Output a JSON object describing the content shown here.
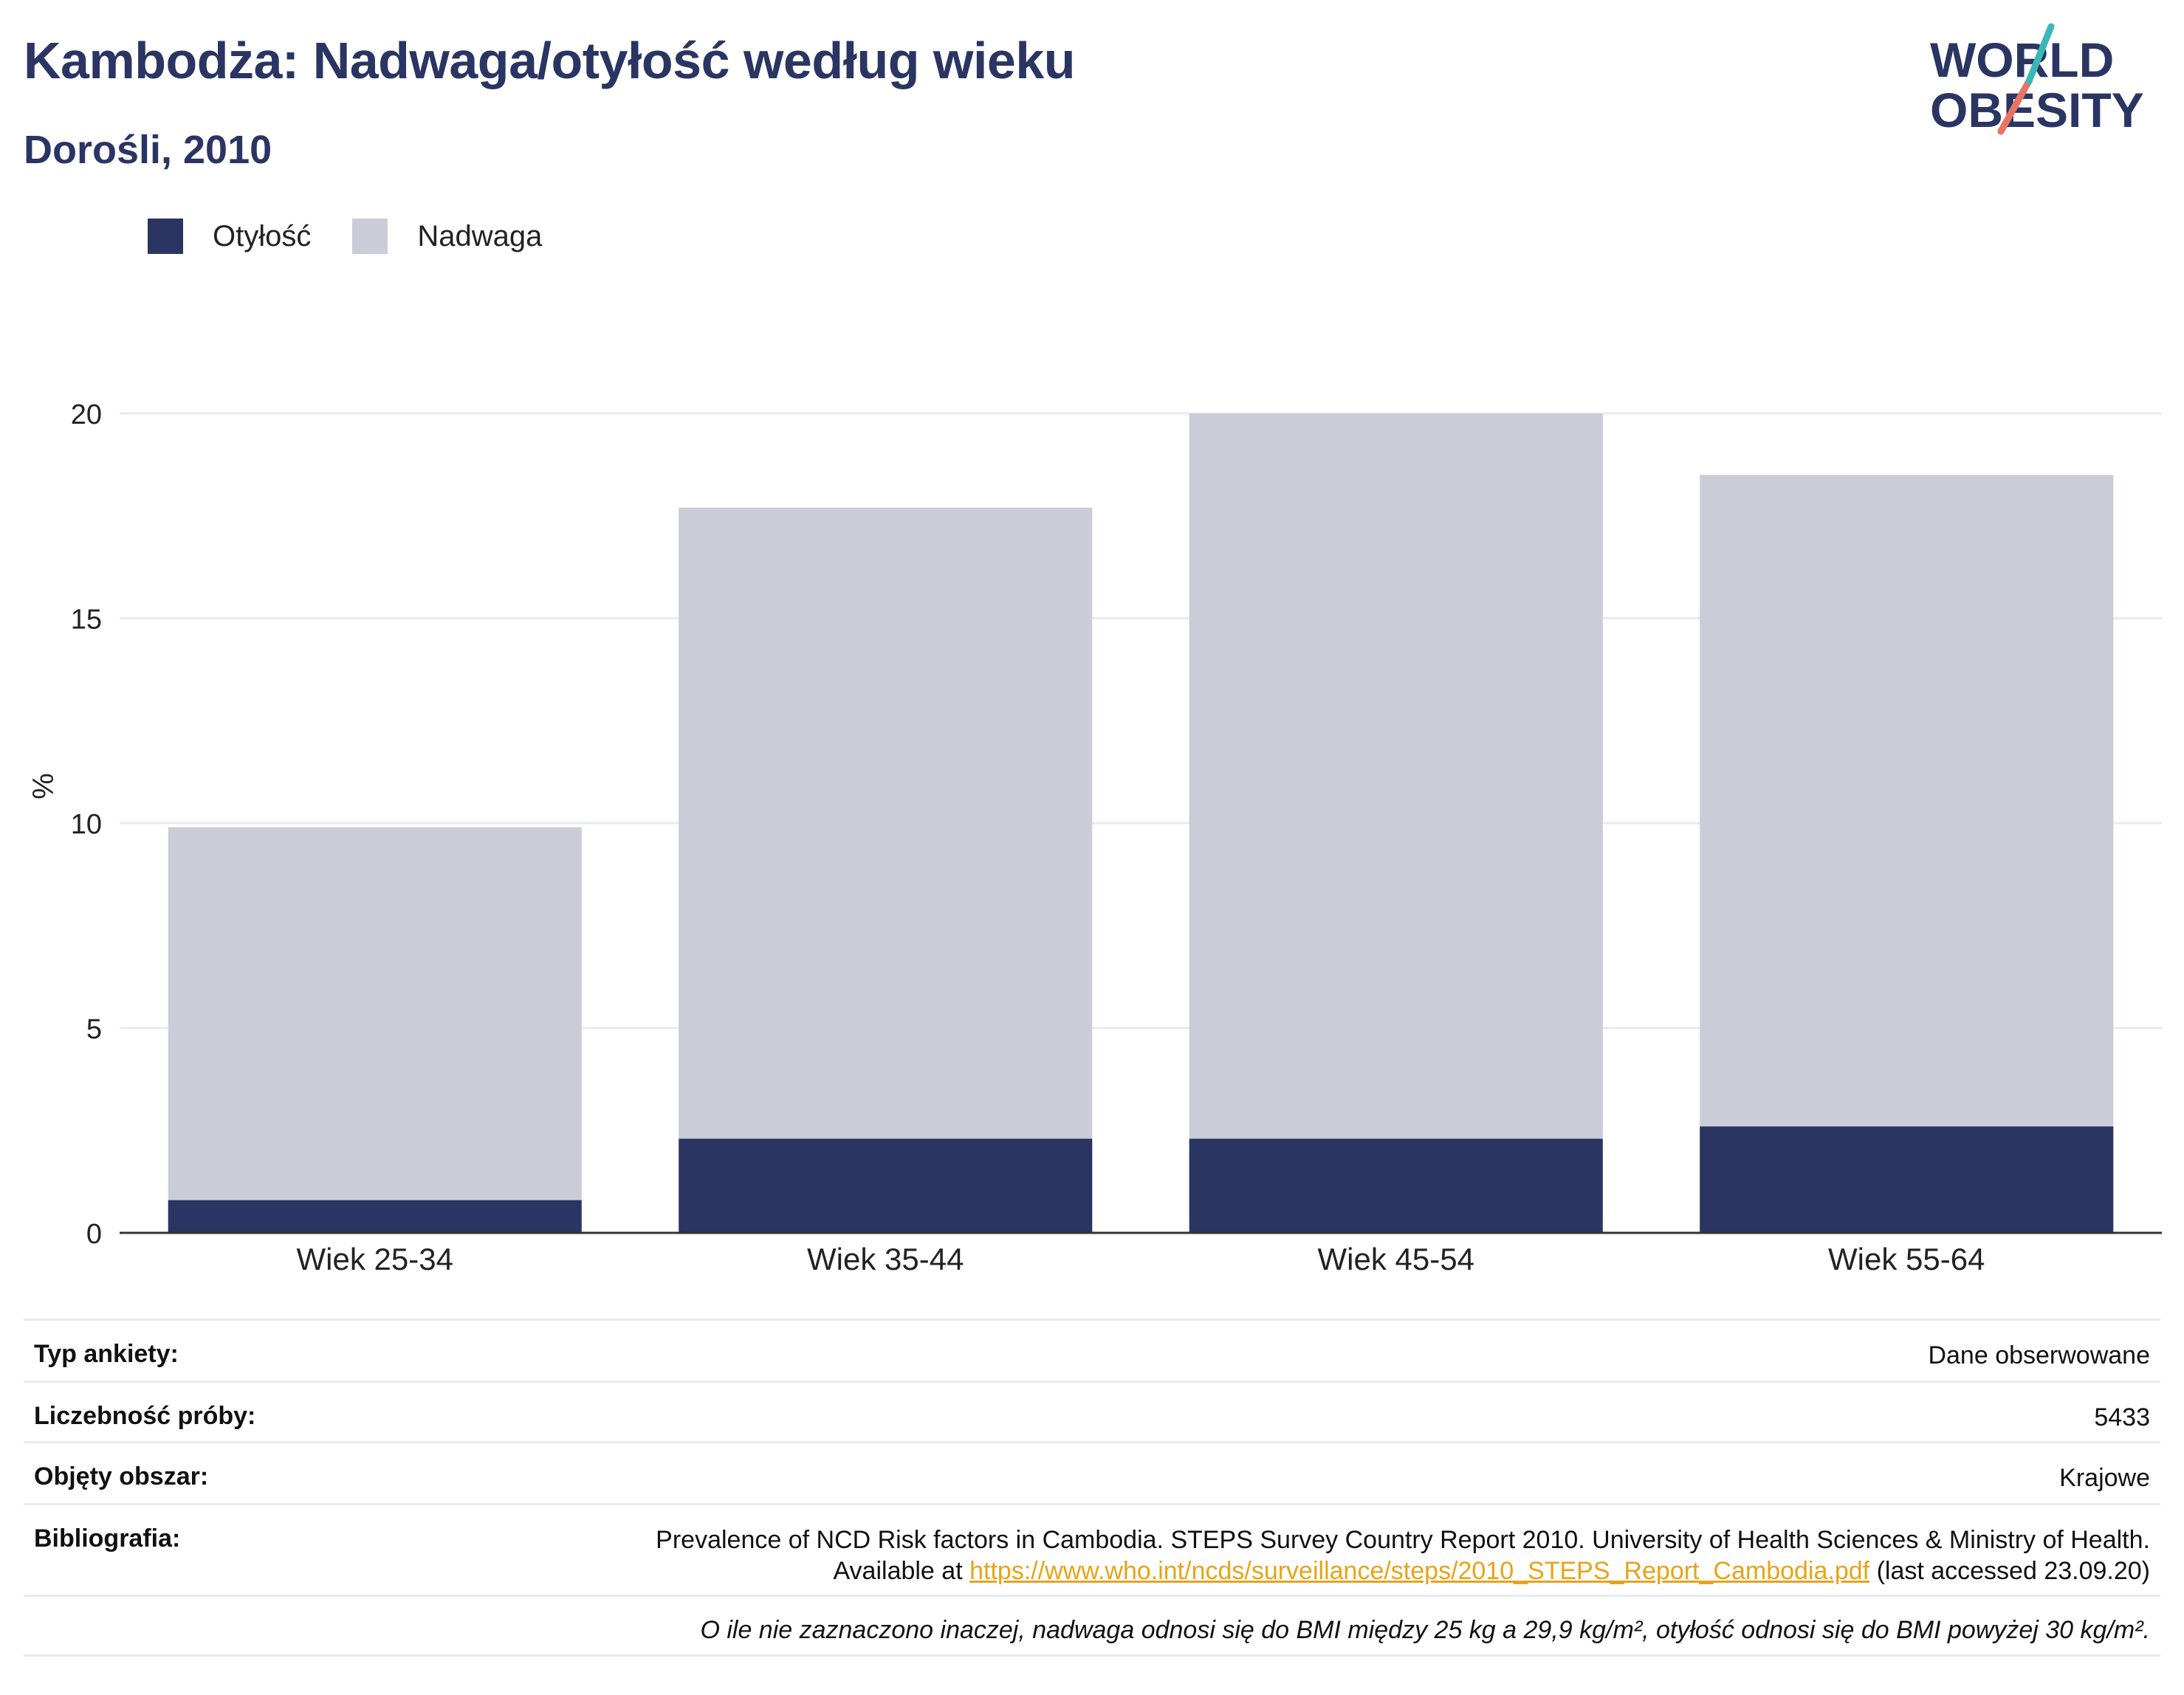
{
  "header": {
    "title": "Kambodża: Nadwaga/otyłość według wieku",
    "subtitle": "Dorośli, 2010",
    "logo_line1": "WORLD",
    "logo_line2": "OBESITY"
  },
  "colors": {
    "obesity": "#2a3563",
    "overweight": "#cacdd8",
    "logo_slash_top": "#3bb7b9",
    "logo_slash_bottom": "#e87461"
  },
  "chart_data": {
    "type": "bar",
    "stacked": true,
    "categories": [
      "Wiek 25-34",
      "Wiek 35-44",
      "Wiek 45-54",
      "Wiek 55-64"
    ],
    "series": [
      {
        "name": "Otyłość",
        "values": [
          0.8,
          2.3,
          2.3,
          2.6
        ]
      },
      {
        "name": "Nadwaga",
        "values": [
          9.1,
          15.4,
          17.7,
          15.9
        ]
      }
    ],
    "ylabel": "%",
    "xlabel": "",
    "ylim": [
      0,
      20
    ],
    "yticks": [
      0,
      5,
      10,
      15,
      20
    ],
    "grid": true,
    "legend_position": "top-left"
  },
  "meta": {
    "survey_type_label": "Typ ankiety:",
    "survey_type_value": "Dane obserwowane",
    "sample_size_label": "Liczebność próby:",
    "sample_size_value": "5433",
    "coverage_label": "Objęty obszar:",
    "coverage_value": "Krajowe",
    "bibliography_label": "Bibliografia:",
    "bibliography_line1": "Prevalence of NCD Risk factors in Cambodia. STEPS Survey Country Report 2010. University of Health Sciences & Ministry of Health.",
    "bibliography_available": "Available at",
    "bibliography_url": "https://www.who.int/ncds/surveillance/steps/2010_STEPS_Report_Cambodia.pdf",
    "bibliography_accessed": "(last accessed 23.09.20)",
    "footnote": "O ile nie zaznaczono inaczej, nadwaga odnosi się do BMI między 25 kg a 29,9 kg/m², otyłość odnosi się do BMI powyżej 30 kg/m²."
  }
}
